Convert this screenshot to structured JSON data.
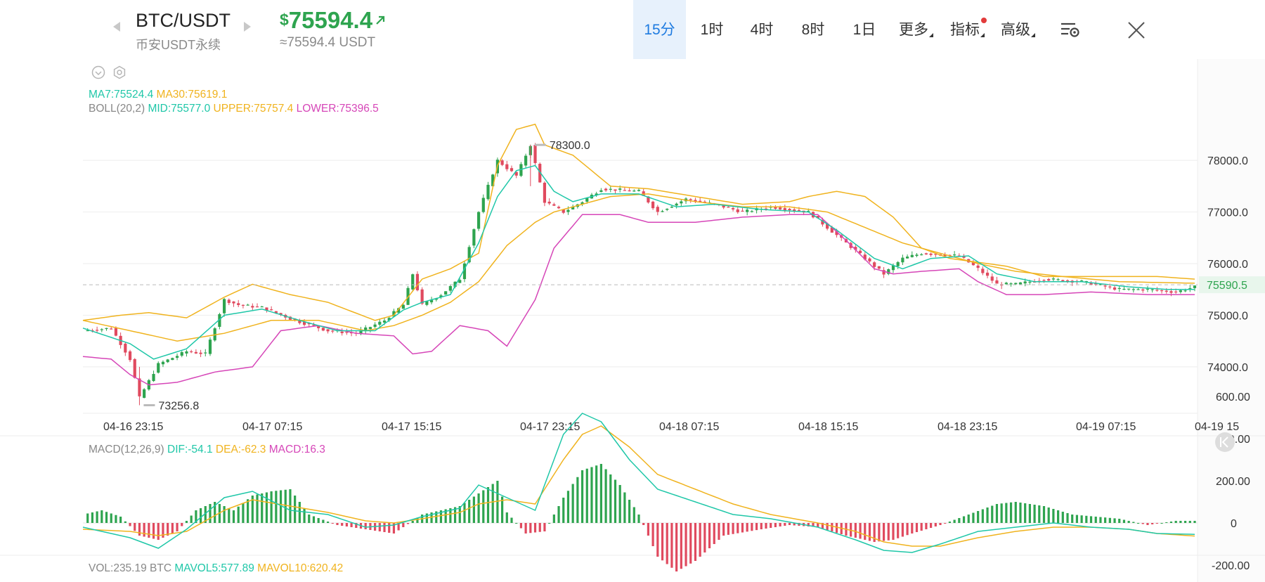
{
  "header": {
    "pair": "BTC/USDT",
    "exchange": "币安USDT永续",
    "price_currency": "$",
    "price": "75594.4",
    "price_approx": "≈75594.4 USDT",
    "tabs": [
      {
        "label": "15分",
        "active": true
      },
      {
        "label": "1时",
        "active": false
      },
      {
        "label": "4时",
        "active": false
      },
      {
        "label": "8时",
        "active": false
      },
      {
        "label": "1日",
        "active": false
      },
      {
        "label": "更多",
        "active": false
      },
      {
        "label": "指标",
        "active": false
      },
      {
        "label": "高级",
        "active": false
      }
    ],
    "icons": [
      "chevron-left-icon",
      "chevron-right-icon",
      "arrow-up-right-icon",
      "chart-settings-icon",
      "close-icon",
      "collapse-icon",
      "eye-icon",
      "gear-icon"
    ]
  },
  "legend": {
    "ma7": "MA7:75524.4",
    "ma30": "MA30:75619.1",
    "boll": "BOLL(20,2)",
    "mid": "MID:75577.0",
    "upper": "UPPER:75757.4",
    "lower": "LOWER:75396.5",
    "macd_title": "MACD(12,26,9)",
    "dif": "DIF:-54.1",
    "dea": "DEA:-62.3",
    "macd": "MACD:16.3",
    "vol": "VOL:235.19 BTC",
    "mavol5": "MAVOL5:577.89",
    "mavol10": "MAVOL10:620.42"
  },
  "colors": {
    "up": "#2ea44f",
    "down": "#e04a5f",
    "ma7": "#1fc7a8",
    "ma30": "#f0b31e",
    "lower": "#d646b8",
    "active_tab": "#1e7be0"
  },
  "chart_data": {
    "type": "candlestick",
    "interval": "15分",
    "x_ticks": [
      "04-16 23:15",
      "04-17 07:15",
      "04-17 15:15",
      "04-17 23:15",
      "04-18 07:15",
      "04-18 15:15",
      "04-18 23:15",
      "04-19 07:15",
      "04-19 15"
    ],
    "y_ticks": [
      74000,
      75000,
      76000,
      77000,
      78000
    ],
    "ylim": [
      73100,
      79500
    ],
    "current_price": 75590.5,
    "high_label": "78300.0",
    "high_value": 78300,
    "low_label": "73256.8",
    "low_value": 73256.8,
    "macd_y_ticks": [
      600,
      400,
      200,
      0,
      -200
    ],
    "price_path": [
      [
        0,
        74700
      ],
      [
        6,
        74750
      ],
      [
        10,
        74150
      ],
      [
        12,
        73400
      ],
      [
        16,
        74050
      ],
      [
        22,
        74300
      ],
      [
        26,
        74250
      ],
      [
        30,
        75300
      ],
      [
        33,
        75200
      ],
      [
        38,
        75150
      ],
      [
        45,
        74900
      ],
      [
        52,
        74700
      ],
      [
        58,
        74650
      ],
      [
        64,
        74900
      ],
      [
        68,
        75200
      ],
      [
        70,
        75800
      ],
      [
        72,
        75200
      ],
      [
        76,
        75400
      ],
      [
        80,
        75700
      ],
      [
        84,
        77000
      ],
      [
        88,
        78000
      ],
      [
        92,
        77700
      ],
      [
        95,
        78300
      ],
      [
        98,
        77200
      ],
      [
        102,
        77000
      ],
      [
        106,
        77200
      ],
      [
        110,
        77450
      ],
      [
        118,
        77400
      ],
      [
        122,
        77000
      ],
      [
        128,
        77250
      ],
      [
        134,
        77150
      ],
      [
        140,
        77000
      ],
      [
        146,
        77100
      ],
      [
        154,
        77000
      ],
      [
        158,
        76700
      ],
      [
        166,
        76100
      ],
      [
        170,
        75800
      ],
      [
        174,
        76100
      ],
      [
        178,
        76200
      ],
      [
        186,
        76150
      ],
      [
        190,
        75900
      ],
      [
        194,
        75600
      ],
      [
        198,
        75600
      ],
      [
        204,
        75700
      ],
      [
        212,
        75650
      ],
      [
        220,
        75500
      ],
      [
        226,
        75500
      ],
      [
        232,
        75450
      ],
      [
        236,
        75550
      ]
    ],
    "ma7": [
      [
        0,
        74750
      ],
      [
        10,
        74450
      ],
      [
        15,
        74150
      ],
      [
        22,
        74350
      ],
      [
        30,
        75000
      ],
      [
        38,
        75120
      ],
      [
        46,
        74900
      ],
      [
        54,
        74700
      ],
      [
        62,
        74700
      ],
      [
        68,
        75100
      ],
      [
        72,
        75250
      ],
      [
        78,
        75400
      ],
      [
        84,
        76400
      ],
      [
        88,
        77300
      ],
      [
        92,
        77800
      ],
      [
        96,
        77900
      ],
      [
        100,
        77400
      ],
      [
        104,
        77200
      ],
      [
        110,
        77350
      ],
      [
        118,
        77350
      ],
      [
        126,
        77100
      ],
      [
        134,
        77150
      ],
      [
        144,
        77050
      ],
      [
        154,
        77000
      ],
      [
        160,
        76650
      ],
      [
        168,
        76100
      ],
      [
        174,
        75900
      ],
      [
        180,
        76100
      ],
      [
        188,
        76150
      ],
      [
        194,
        75800
      ],
      [
        202,
        75650
      ],
      [
        212,
        75650
      ],
      [
        222,
        75550
      ],
      [
        230,
        75500
      ],
      [
        236,
        75500
      ]
    ],
    "ma30": [
      [
        0,
        74900
      ],
      [
        10,
        74700
      ],
      [
        20,
        74500
      ],
      [
        30,
        74650
      ],
      [
        40,
        74900
      ],
      [
        50,
        74900
      ],
      [
        60,
        74700
      ],
      [
        66,
        74800
      ],
      [
        72,
        75000
      ],
      [
        78,
        75250
      ],
      [
        84,
        75650
      ],
      [
        90,
        76350
      ],
      [
        96,
        76800
      ],
      [
        100,
        77000
      ],
      [
        106,
        77150
      ],
      [
        112,
        77300
      ],
      [
        120,
        77350
      ],
      [
        130,
        77200
      ],
      [
        140,
        77100
      ],
      [
        150,
        77100
      ],
      [
        158,
        77000
      ],
      [
        166,
        76700
      ],
      [
        174,
        76400
      ],
      [
        182,
        76200
      ],
      [
        190,
        76000
      ],
      [
        198,
        75850
      ],
      [
        208,
        75750
      ],
      [
        220,
        75650
      ],
      [
        236,
        75620
      ]
    ],
    "boll_upper": [
      [
        0,
        74900
      ],
      [
        8,
        75000
      ],
      [
        14,
        75050
      ],
      [
        22,
        74950
      ],
      [
        30,
        75350
      ],
      [
        36,
        75600
      ],
      [
        44,
        75400
      ],
      [
        52,
        75250
      ],
      [
        62,
        74900
      ],
      [
        66,
        75000
      ],
      [
        72,
        75700
      ],
      [
        78,
        75900
      ],
      [
        84,
        76200
      ],
      [
        88,
        77900
      ],
      [
        92,
        78600
      ],
      [
        96,
        78700
      ],
      [
        98,
        78300
      ],
      [
        104,
        78100
      ],
      [
        112,
        77500
      ],
      [
        120,
        77450
      ],
      [
        130,
        77300
      ],
      [
        140,
        77150
      ],
      [
        150,
        77200
      ],
      [
        154,
        77300
      ],
      [
        160,
        77400
      ],
      [
        166,
        77300
      ],
      [
        172,
        76900
      ],
      [
        178,
        76300
      ],
      [
        184,
        76100
      ],
      [
        196,
        75950
      ],
      [
        204,
        75750
      ],
      [
        212,
        75750
      ],
      [
        228,
        75750
      ],
      [
        236,
        75700
      ]
    ],
    "boll_lower": [
      [
        0,
        74200
      ],
      [
        6,
        74150
      ],
      [
        10,
        73850
      ],
      [
        14,
        73650
      ],
      [
        20,
        73700
      ],
      [
        28,
        73900
      ],
      [
        36,
        74000
      ],
      [
        42,
        74700
      ],
      [
        50,
        74800
      ],
      [
        58,
        74650
      ],
      [
        66,
        74600
      ],
      [
        70,
        74250
      ],
      [
        74,
        74300
      ],
      [
        80,
        74800
      ],
      [
        86,
        74700
      ],
      [
        90,
        74400
      ],
      [
        96,
        75300
      ],
      [
        100,
        76300
      ],
      [
        106,
        76950
      ],
      [
        114,
        76950
      ],
      [
        120,
        76800
      ],
      [
        130,
        76800
      ],
      [
        140,
        76900
      ],
      [
        150,
        76950
      ],
      [
        156,
        76950
      ],
      [
        162,
        76450
      ],
      [
        168,
        75900
      ],
      [
        172,
        75800
      ],
      [
        178,
        75850
      ],
      [
        186,
        75900
      ],
      [
        190,
        75650
      ],
      [
        196,
        75400
      ],
      [
        204,
        75400
      ],
      [
        214,
        75450
      ],
      [
        226,
        75400
      ],
      [
        236,
        75400
      ]
    ],
    "macd_hist": [
      [
        0,
        40
      ],
      [
        4,
        60
      ],
      [
        8,
        30
      ],
      [
        12,
        -60
      ],
      [
        16,
        -80
      ],
      [
        20,
        -40
      ],
      [
        24,
        60
      ],
      [
        28,
        100
      ],
      [
        32,
        60
      ],
      [
        36,
        130
      ],
      [
        40,
        150
      ],
      [
        44,
        160
      ],
      [
        48,
        40
      ],
      [
        54,
        -10
      ],
      [
        60,
        -30
      ],
      [
        66,
        -50
      ],
      [
        72,
        40
      ],
      [
        76,
        60
      ],
      [
        80,
        80
      ],
      [
        84,
        140
      ],
      [
        88,
        200
      ],
      [
        90,
        50
      ],
      [
        94,
        -50
      ],
      [
        98,
        -40
      ],
      [
        102,
        120
      ],
      [
        106,
        250
      ],
      [
        110,
        280
      ],
      [
        114,
        180
      ],
      [
        118,
        40
      ],
      [
        122,
        -160
      ],
      [
        126,
        -230
      ],
      [
        130,
        -180
      ],
      [
        136,
        -60
      ],
      [
        144,
        -30
      ],
      [
        150,
        -10
      ],
      [
        156,
        -20
      ],
      [
        162,
        -60
      ],
      [
        168,
        -90
      ],
      [
        172,
        -80
      ],
      [
        176,
        -50
      ],
      [
        182,
        -10
      ],
      [
        188,
        40
      ],
      [
        194,
        90
      ],
      [
        198,
        100
      ],
      [
        204,
        80
      ],
      [
        210,
        40
      ],
      [
        220,
        20
      ],
      [
        226,
        -10
      ],
      [
        232,
        10
      ],
      [
        236,
        10
      ]
    ],
    "dif": [
      [
        0,
        -20
      ],
      [
        10,
        -70
      ],
      [
        16,
        -120
      ],
      [
        22,
        -30
      ],
      [
        30,
        120
      ],
      [
        36,
        150
      ],
      [
        44,
        60
      ],
      [
        52,
        40
      ],
      [
        60,
        -20
      ],
      [
        66,
        -10
      ],
      [
        72,
        30
      ],
      [
        80,
        70
      ],
      [
        84,
        180
      ],
      [
        90,
        120
      ],
      [
        96,
        60
      ],
      [
        102,
        420
      ],
      [
        106,
        520
      ],
      [
        110,
        480
      ],
      [
        116,
        300
      ],
      [
        122,
        160
      ],
      [
        130,
        100
      ],
      [
        138,
        40
      ],
      [
        146,
        20
      ],
      [
        156,
        -20
      ],
      [
        164,
        -80
      ],
      [
        170,
        -130
      ],
      [
        176,
        -140
      ],
      [
        182,
        -100
      ],
      [
        190,
        -40
      ],
      [
        198,
        -20
      ],
      [
        206,
        0
      ],
      [
        214,
        -20
      ],
      [
        222,
        -30
      ],
      [
        228,
        -50
      ],
      [
        236,
        -54
      ]
    ],
    "dea": [
      [
        0,
        -30
      ],
      [
        10,
        -40
      ],
      [
        16,
        -60
      ],
      [
        22,
        -40
      ],
      [
        30,
        60
      ],
      [
        36,
        110
      ],
      [
        44,
        80
      ],
      [
        52,
        50
      ],
      [
        60,
        10
      ],
      [
        66,
        0
      ],
      [
        72,
        20
      ],
      [
        80,
        50
      ],
      [
        84,
        90
      ],
      [
        90,
        110
      ],
      [
        96,
        90
      ],
      [
        102,
        300
      ],
      [
        106,
        420
      ],
      [
        110,
        460
      ],
      [
        116,
        360
      ],
      [
        122,
        230
      ],
      [
        130,
        160
      ],
      [
        138,
        90
      ],
      [
        146,
        40
      ],
      [
        156,
        0
      ],
      [
        164,
        -40
      ],
      [
        170,
        -90
      ],
      [
        176,
        -110
      ],
      [
        182,
        -110
      ],
      [
        190,
        -70
      ],
      [
        198,
        -40
      ],
      [
        206,
        -20
      ],
      [
        214,
        -20
      ],
      [
        222,
        -30
      ],
      [
        228,
        -50
      ],
      [
        236,
        -62
      ]
    ]
  }
}
